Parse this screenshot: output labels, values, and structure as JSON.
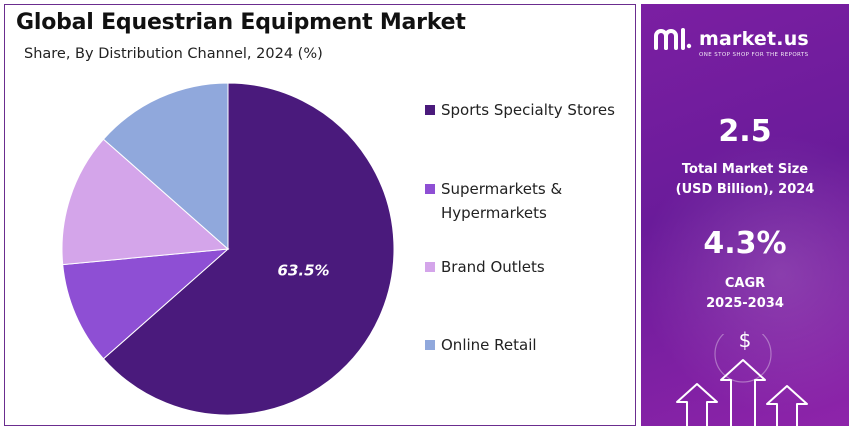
{
  "header": {
    "title": "Global Equestrian Equipment Market",
    "subtitle": "Share, By Distribution Channel, 2024 (%)"
  },
  "chart_data": {
    "type": "pie",
    "title": "Global Equestrian Equipment Market",
    "subtitle": "Share, By Distribution Channel, 2024 (%)",
    "series": [
      {
        "name": "Sports Specialty Stores",
        "value": 63.5,
        "color": "#4a1a7c",
        "label": "63.5%"
      },
      {
        "name": "Supermarkets & Hypermarkets",
        "value": 10.0,
        "color": "#8e4fd4",
        "label": ""
      },
      {
        "name": "Brand Outlets",
        "value": 13.0,
        "color": "#d4a5ea",
        "label": ""
      },
      {
        "name": "Online Retail",
        "value": 13.5,
        "color": "#90a8dc",
        "label": ""
      }
    ],
    "legend_position": "right"
  },
  "legend": {
    "items": [
      {
        "label_line1": "Sports Specialty Stores",
        "label_line2": "",
        "color": "#4a1a7c"
      },
      {
        "label_line1": "Supermarkets &",
        "label_line2": "Hypermarkets",
        "color": "#8e4fd4"
      },
      {
        "label_line1": "Brand Outlets",
        "label_line2": "",
        "color": "#d4a5ea"
      },
      {
        "label_line1": "Online Retail",
        "label_line2": "",
        "color": "#90a8dc"
      }
    ]
  },
  "sidebar": {
    "brand_name": "market.us",
    "brand_tagline": "ONE STOP SHOP FOR THE REPORTS",
    "market_size_value": "2.5",
    "market_size_label_line1": "Total Market Size",
    "market_size_label_line2": "(USD Billion), 2024",
    "cagr_value": "4.3%",
    "cagr_label_line1": "CAGR",
    "cagr_label_line2": "2025-2034",
    "currency_symbol": "$",
    "background_color": "#7b1fa2"
  }
}
